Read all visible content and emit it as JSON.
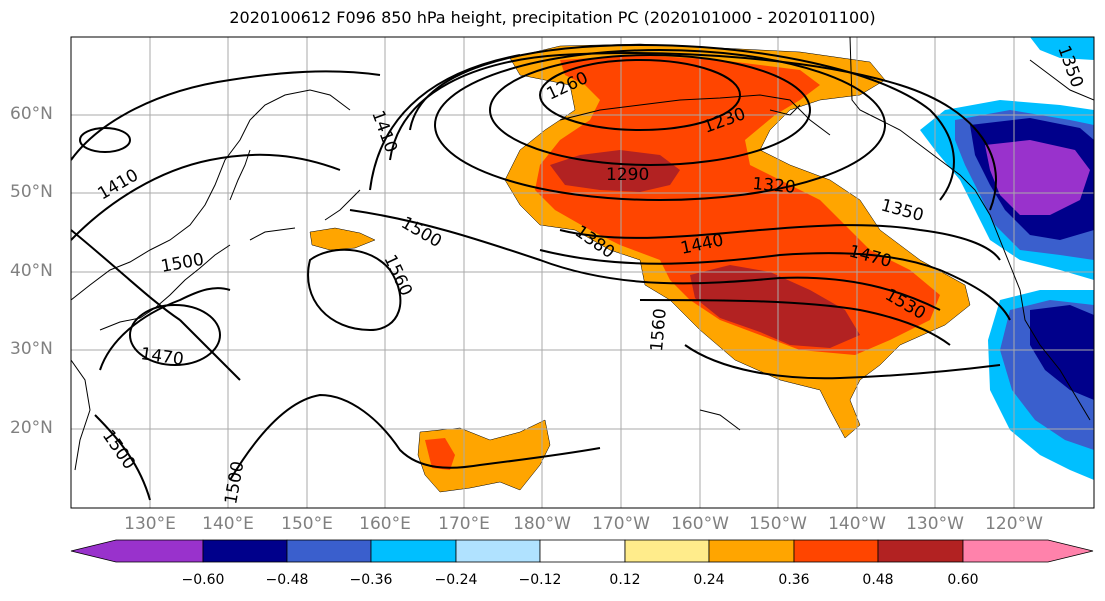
{
  "title": "2020100612 F096 850 hPa height, precipitation PC (2020101000 - 2020101100)",
  "colors": {
    "ocean": "#ffffff",
    "coast": "#000000",
    "contour": "#000000",
    "grid": "#aaaaaa"
  },
  "latitude_labels": [
    "60°N",
    "50°N",
    "40°N",
    "30°N",
    "20°N"
  ],
  "longitude_labels": [
    "130°E",
    "140°E",
    "150°E",
    "160°E",
    "170°E",
    "180°W",
    "170°W",
    "160°W",
    "150°W",
    "140°W",
    "130°W",
    "120°W"
  ],
  "contour_labels": [
    {
      "text": "1260"
    },
    {
      "text": "1230"
    },
    {
      "text": "1290"
    },
    {
      "text": "1320"
    },
    {
      "text": "1350"
    },
    {
      "text": "1380"
    },
    {
      "text": "1410"
    },
    {
      "text": "1410"
    },
    {
      "text": "1440"
    },
    {
      "text": "1470"
    },
    {
      "text": "1470"
    },
    {
      "text": "1500"
    },
    {
      "text": "1500"
    },
    {
      "text": "1500"
    },
    {
      "text": "1530"
    },
    {
      "text": "1560"
    },
    {
      "text": "1560"
    },
    {
      "text": "1350"
    },
    {
      "text": "1500"
    }
  ],
  "colorbar": {
    "ticks": [
      "−0.60",
      "−0.48",
      "−0.36",
      "−0.24",
      "−0.12",
      "0.12",
      "0.24",
      "0.36",
      "0.48",
      "0.60"
    ],
    "bins": [
      {
        "color": "#9932cc"
      },
      {
        "color": "#00008b"
      },
      {
        "color": "#3a5fcd"
      },
      {
        "color": "#00bfff"
      },
      {
        "color": "#b0e2ff"
      },
      {
        "color": "#ffffff"
      },
      {
        "color": "#ffec8b"
      },
      {
        "color": "#ffa500"
      },
      {
        "color": "#ff4500"
      },
      {
        "color": "#b22222"
      },
      {
        "color": "#ff82ab"
      }
    ]
  }
}
